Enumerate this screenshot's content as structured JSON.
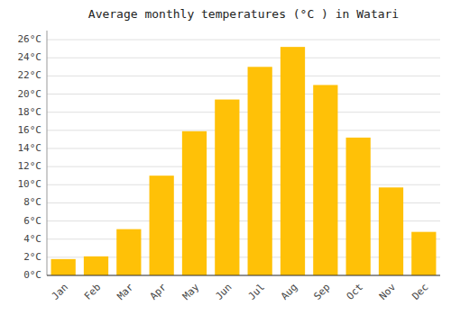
{
  "chart_data": {
    "type": "bar",
    "title": "Average monthly temperatures (°C ) in Watari",
    "categories": [
      "Jan",
      "Feb",
      "Mar",
      "Apr",
      "May",
      "Jun",
      "Jul",
      "Aug",
      "Sep",
      "Oct",
      "Nov",
      "Dec"
    ],
    "values": [
      1.8,
      2.1,
      5.1,
      11.0,
      15.9,
      19.4,
      23.0,
      25.2,
      21.0,
      15.2,
      9.7,
      4.8
    ],
    "color": "#FFC107",
    "ylim": [
      0,
      27
    ],
    "yticks": [
      {
        "value": 0,
        "label": "0°C"
      },
      {
        "value": 2,
        "label": "2°C"
      },
      {
        "value": 4,
        "label": "4°C"
      },
      {
        "value": 6,
        "label": "6°C"
      },
      {
        "value": 8,
        "label": "8°C"
      },
      {
        "value": 10,
        "label": "10°C"
      },
      {
        "value": 12,
        "label": "12°C"
      },
      {
        "value": 14,
        "label": "14°C"
      },
      {
        "value": 16,
        "label": "16°C"
      },
      {
        "value": 18,
        "label": "18°C"
      },
      {
        "value": 20,
        "label": "20°C"
      },
      {
        "value": 22,
        "label": "22°C"
      },
      {
        "value": 24,
        "label": "24°C"
      },
      {
        "value": 26,
        "label": "26°C"
      }
    ],
    "grid": true
  }
}
